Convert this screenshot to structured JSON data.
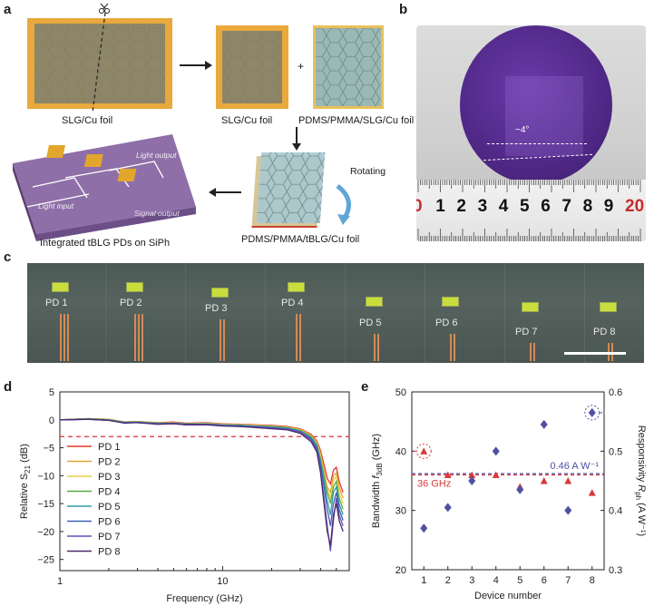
{
  "panel_labels": {
    "a": "a",
    "b": "b",
    "c": "c",
    "d": "d",
    "e": "e"
  },
  "panel_a": {
    "captions": {
      "slg_cu_left": "SLG/Cu foil",
      "slg_cu_mid": "SLG/Cu foil",
      "plus": "+",
      "pdms_slg": "PDMS/PMMA/SLG/Cu foil",
      "rotating": "Rotating",
      "pdms_tblg": "PDMS/PMMA/tBLG/Cu foil",
      "integrated": "Integrated tBLG PDs on SiPh"
    },
    "chip_labels": {
      "light_output": "Light output",
      "light_input": "Light input",
      "signal_output": "Signal output"
    },
    "icons": [
      "scissors-icon",
      "arrow-right-icon",
      "arrow-down-icon",
      "arrow-left-icon",
      "curved-arrow-icon"
    ]
  },
  "panel_b": {
    "angle_label": "~4°",
    "ruler_digits": [
      "0",
      "1",
      "2",
      "3",
      "4",
      "5",
      "6",
      "7",
      "8",
      "9",
      "20"
    ]
  },
  "panel_c": {
    "devices": [
      "PD 1",
      "PD 2",
      "PD 3",
      "PD 4",
      "PD 5",
      "PD 6",
      "PD 7",
      "PD 8"
    ]
  },
  "chart_data": [
    {
      "type": "line",
      "panel": "d",
      "xlabel": "Frequency (GHz)",
      "ylabel_main": "Relative S",
      "ylabel_sub": "21",
      "ylabel_unit": " (dB)",
      "xscale": "log",
      "xlim": [
        1,
        60
      ],
      "ylim": [
        -27,
        5
      ],
      "xticks": [
        1,
        10
      ],
      "yticks": [
        5,
        0,
        -5,
        -10,
        -15,
        -20,
        -25
      ],
      "reference_line": -3,
      "legend_position": "left",
      "x": [
        1,
        1.5,
        2,
        2.5,
        3,
        4,
        5,
        6,
        8,
        10,
        13,
        16,
        20,
        25,
        30,
        35,
        38,
        40,
        42,
        44,
        46,
        48,
        50,
        52,
        55
      ],
      "series": [
        {
          "name": "PD 1",
          "color": "#e0392f",
          "values": [
            0,
            0.2,
            0.1,
            -0.4,
            -0.3,
            -0.5,
            -0.4,
            -0.6,
            -0.5,
            -0.7,
            -0.8,
            -0.9,
            -1.0,
            -1.2,
            -1.6,
            -2.6,
            -3.8,
            -5.5,
            -8,
            -10.5,
            -11.5,
            -9,
            -8.5,
            -11,
            -13
          ]
        },
        {
          "name": "PD 2",
          "color": "#e9a23b",
          "values": [
            0,
            0.2,
            0.1,
            -0.4,
            -0.3,
            -0.5,
            -0.5,
            -0.7,
            -0.6,
            -0.8,
            -0.9,
            -1.0,
            -1.1,
            -1.3,
            -1.7,
            -2.8,
            -4.0,
            -6,
            -9,
            -12,
            -13,
            -10,
            -9.5,
            -12,
            -14
          ]
        },
        {
          "name": "PD 3",
          "color": "#e6d24a",
          "values": [
            0,
            0.2,
            0.0,
            -0.4,
            -0.4,
            -0.6,
            -0.5,
            -0.7,
            -0.6,
            -0.8,
            -0.9,
            -1.0,
            -1.1,
            -1.4,
            -1.8,
            -2.9,
            -4.2,
            -6.5,
            -9.5,
            -12.5,
            -14,
            -11,
            -10,
            -13,
            -15
          ]
        },
        {
          "name": "PD 4",
          "color": "#5aab47",
          "values": [
            0,
            0.2,
            0.0,
            -0.4,
            -0.4,
            -0.6,
            -0.6,
            -0.7,
            -0.7,
            -0.9,
            -1.0,
            -1.1,
            -1.2,
            -1.4,
            -1.9,
            -3.0,
            -4.4,
            -7,
            -10,
            -13,
            -15,
            -12,
            -11,
            -14,
            -16
          ]
        },
        {
          "name": "PD 5",
          "color": "#2f9ca4",
          "values": [
            0,
            0.1,
            0.0,
            -0.5,
            -0.4,
            -0.6,
            -0.6,
            -0.8,
            -0.7,
            -0.9,
            -1.0,
            -1.1,
            -1.3,
            -1.5,
            -2.0,
            -3.2,
            -4.6,
            -7.5,
            -11,
            -14.5,
            -17,
            -13,
            -12,
            -15,
            -17
          ]
        },
        {
          "name": "PD 6",
          "color": "#3e62b8",
          "values": [
            0,
            0.1,
            -0.1,
            -0.5,
            -0.5,
            -0.7,
            -0.6,
            -0.8,
            -0.8,
            -1.0,
            -1.1,
            -1.2,
            -1.4,
            -1.6,
            -2.1,
            -3.4,
            -5.0,
            -8,
            -12,
            -16,
            -19,
            -15,
            -13,
            -16,
            -18
          ]
        },
        {
          "name": "PD 7",
          "color": "#6b4fb3",
          "values": [
            0,
            0.1,
            -0.1,
            -0.5,
            -0.5,
            -0.7,
            -0.7,
            -0.9,
            -0.8,
            -1.0,
            -1.2,
            -1.3,
            -1.5,
            -1.7,
            -2.2,
            -3.6,
            -5.4,
            -9,
            -14,
            -19,
            -23.5,
            -18,
            -14,
            -17,
            -19
          ]
        },
        {
          "name": "PD 8",
          "color": "#4a2a6e",
          "values": [
            0,
            0.1,
            -0.1,
            -0.6,
            -0.5,
            -0.8,
            -0.7,
            -0.9,
            -0.9,
            -1.1,
            -1.2,
            -1.4,
            -1.6,
            -1.8,
            -2.4,
            -3.9,
            -5.8,
            -9.5,
            -15,
            -20,
            -22.5,
            -17,
            -15,
            -18,
            -20
          ]
        }
      ]
    },
    {
      "type": "scatter",
      "panel": "e",
      "xlabel": "Device number",
      "ylabel_left_main": "Bandwidth ",
      "ylabel_left_italic": "f",
      "ylabel_left_sub": "3dB",
      "ylabel_left_unit": " (GHz)",
      "ylabel_right_main": "Responsivity ",
      "ylabel_right_italic": "R",
      "ylabel_right_sub": "ph",
      "ylabel_right_unit": " (A W⁻¹)",
      "xlim": [
        0.5,
        8.5
      ],
      "xticks": [
        1,
        2,
        3,
        4,
        5,
        6,
        7,
        8
      ],
      "ylim_left": [
        20,
        50
      ],
      "yticks_left": [
        20,
        30,
        40,
        50
      ],
      "ylim_right": [
        0.3,
        0.6
      ],
      "yticks_right": [
        0.3,
        0.4,
        0.5,
        0.6
      ],
      "series": [
        {
          "name": "Bandwidth",
          "axis": "left",
          "marker": "triangle",
          "color": "#d93a3a",
          "x": [
            1,
            2,
            3,
            4,
            5,
            6,
            7,
            8
          ],
          "values": [
            40,
            36,
            36,
            36,
            34,
            35,
            35,
            33
          ]
        },
        {
          "name": "Responsivity",
          "axis": "right",
          "marker": "diamond",
          "color": "#4f4fa3",
          "x": [
            1,
            2,
            3,
            4,
            5,
            6,
            7,
            8
          ],
          "values": [
            0.37,
            0.405,
            0.45,
            0.5,
            0.435,
            0.545,
            0.4,
            0.565
          ]
        }
      ],
      "mean_lines": [
        {
          "label": "36 GHz",
          "axis": "left",
          "value": 36,
          "color": "#d93a3a"
        },
        {
          "label": "0.46 A W⁻¹",
          "axis": "right",
          "value": 0.462,
          "color": "#4f4fa3"
        }
      ]
    }
  ]
}
